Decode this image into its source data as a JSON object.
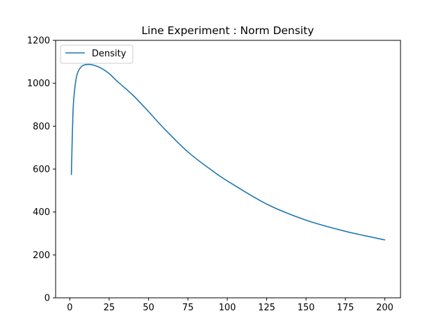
{
  "chart_data": {
    "type": "line",
    "title": "Line Experiment : Norm Density",
    "xlabel": "",
    "ylabel": "",
    "xlim": [
      -9.0,
      210.0
    ],
    "ylim": [
      0,
      1200
    ],
    "xticks": [
      0,
      25,
      50,
      75,
      100,
      125,
      150,
      175,
      200
    ],
    "yticks": [
      0,
      200,
      400,
      600,
      800,
      1000,
      1200
    ],
    "grid": false,
    "legend_position": "upper left",
    "series": [
      {
        "name": "Density",
        "color": "#1f77b4",
        "x": [
          1,
          2,
          3,
          4,
          5,
          7,
          9,
          12,
          15,
          20,
          25,
          30,
          40,
          50,
          60,
          75,
          90,
          100,
          125,
          150,
          175,
          200
        ],
        "y": [
          575,
          860,
          965,
          1020,
          1050,
          1075,
          1085,
          1088,
          1085,
          1070,
          1045,
          1010,
          945,
          868,
          788,
          680,
          595,
          545,
          437,
          362,
          310,
          270
        ]
      }
    ]
  }
}
